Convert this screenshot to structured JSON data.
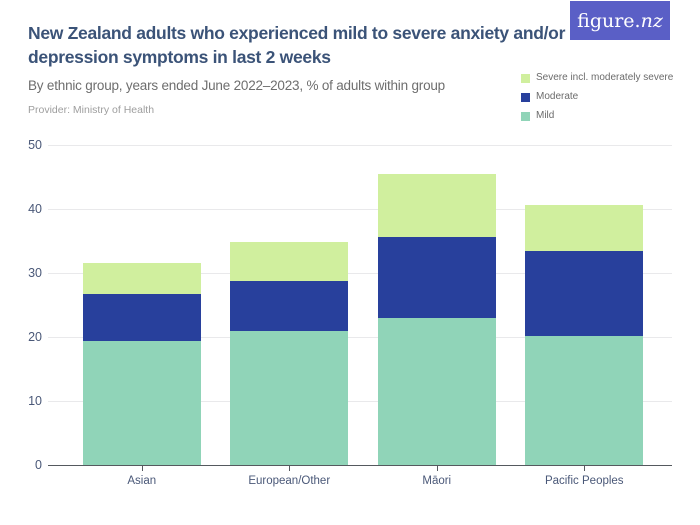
{
  "header": {
    "logo_text_main": "figure.",
    "logo_text_suffix": "nz",
    "title": "New Zealand adults who experienced mild to severe anxiety and/or depression symptoms in last 2 weeks",
    "subtitle": "By ethnic group, years ended June 2022–2023, % of adults within group",
    "provider": "Provider: Ministry of Health"
  },
  "colors": {
    "logo_bg": "#5a5fc6",
    "title_text": "#3b5378",
    "subtitle_text": "#6e6e6e",
    "provider_text": "#9e9e9e",
    "axis_label": "#4a5878",
    "legend_text": "#6b6b6b",
    "gridline": "#e9e9eb",
    "axis_line": "#55595e",
    "severe": "#d0ef9e",
    "moderate": "#28409c",
    "mild": "#90d4b8"
  },
  "legend": {
    "items": [
      {
        "label": "Severe incl. moderately severe",
        "color": "#d0ef9e"
      },
      {
        "label": "Moderate",
        "color": "#28409c"
      },
      {
        "label": "Mild",
        "color": "#90d4b8"
      }
    ]
  },
  "chart_data": {
    "type": "bar",
    "stacked": true,
    "title": "New Zealand adults who experienced mild to severe anxiety and/or depression symptoms in last 2 weeks",
    "subtitle": "By ethnic group, years ended June 2022–2023, % of adults within group",
    "xlabel": "",
    "ylabel": "% of adults within group",
    "categories": [
      "Asian",
      "European/Other",
      "Māori",
      "Pacific Peoples"
    ],
    "series": [
      {
        "name": "Mild",
        "color": "#90d4b8",
        "values": [
          19.4,
          20.9,
          22.9,
          20.1
        ]
      },
      {
        "name": "Moderate",
        "color": "#28409c",
        "values": [
          7.3,
          7.8,
          12.8,
          13.3
        ]
      },
      {
        "name": "Severe incl. moderately severe",
        "color": "#d0ef9e",
        "values": [
          4.8,
          6.1,
          9.7,
          7.3
        ]
      }
    ],
    "stack_totals": [
      31.5,
      34.8,
      45.4,
      40.7
    ],
    "ylim": [
      0,
      50
    ],
    "yticks": [
      0,
      10,
      20,
      30,
      40,
      50
    ],
    "grid": true,
    "legend_position": "top-right"
  }
}
